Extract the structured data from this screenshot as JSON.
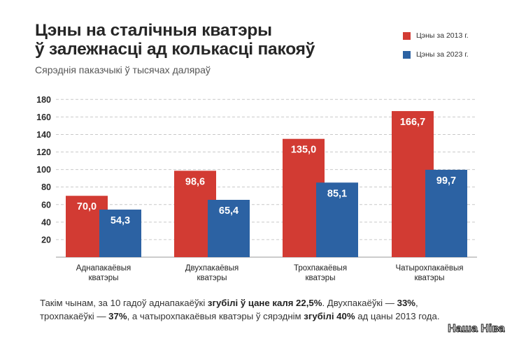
{
  "header": {
    "title_line1": "Цэны на сталічныя кватэры",
    "title_line2": "ў залежнасці ад колькасці пакояў",
    "subtitle": "Сярэднія паказчыкі ў тысячах даляраў"
  },
  "colors": {
    "series_2013": "#d23b33",
    "series_2023": "#2c62a3",
    "grid": "#c9c9c9"
  },
  "chart_data": {
    "type": "bar",
    "title": "Цэны на сталічныя кватэры ў залежнасці ад колькасці пакояў",
    "subtitle": "Сярэднія паказчыкі ў тысячах даляраў",
    "categories": [
      [
        "Аднапакаёвыя",
        "кватэры"
      ],
      [
        "Двухпакаёвыя",
        "кватэры"
      ],
      [
        "Трохпакаёвыя",
        "кватэры"
      ],
      [
        "Чатырохпакаёвыя",
        "кватэры"
      ]
    ],
    "series": [
      {
        "name": "Цэны за 2013 г.",
        "values": [
          70.0,
          98.6,
          135.0,
          166.7
        ],
        "labels": [
          "70,0",
          "98,6",
          "135,0",
          "166,7"
        ]
      },
      {
        "name": "Цэны за 2023 г.",
        "values": [
          54.3,
          65.4,
          85.1,
          99.7
        ],
        "labels": [
          "54,3",
          "65,4",
          "85,1",
          "99,7"
        ]
      }
    ],
    "y_ticks": [
      20,
      40,
      60,
      80,
      100,
      120,
      140,
      160,
      180
    ],
    "ylim": [
      0,
      180
    ],
    "grid": true,
    "legend": "top-right"
  },
  "footnote": {
    "p1": "Такім чынам, за 10 гадоў аднапакаёўкі ",
    "b1": "згубілі ў цане каля 22,5%",
    "p2": ". Двухпакаёўкі — ",
    "b2": "33%",
    "p3": ",",
    "p4": "трохпакаёўкі — ",
    "b3": "37%",
    "p5": ", а чатырохпакаёвыя кватэры ў сярэднім ",
    "b4": "згубілі 40%",
    "p6": " ад цаны 2013 года."
  },
  "logo_text": "Наша Ніва"
}
